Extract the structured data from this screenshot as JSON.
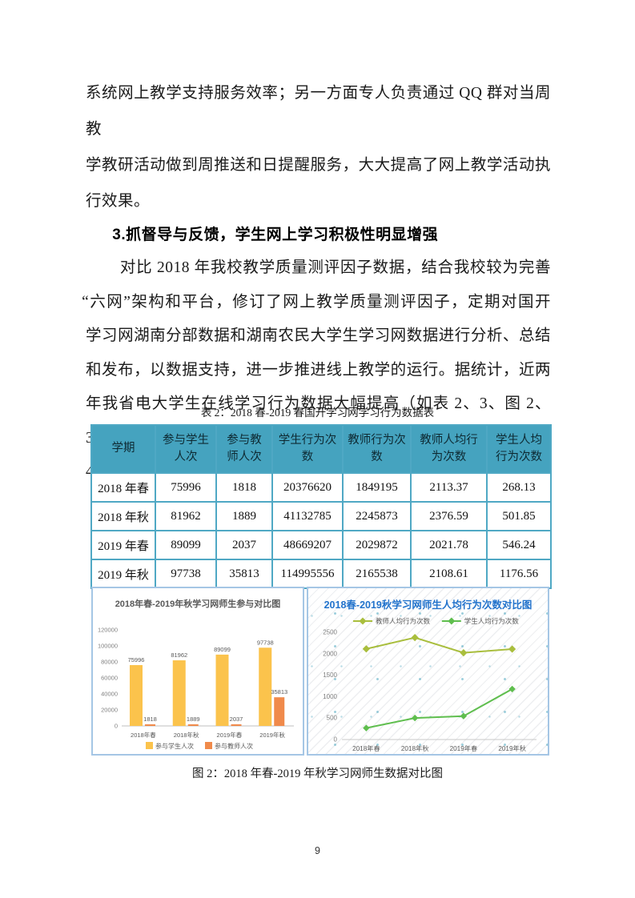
{
  "document": {
    "paragraph1_lines": [
      "系统网上教学支持服务效率；另一方面专人负责通过 QQ 群对当周教",
      "学教研活动做到周推送和日提醒服务，大大提高了网上教学活动执",
      "行效果。"
    ],
    "heading": "3.抓督导与反馈，学生网上学习积极性明显增强",
    "paragraph2_lines": [
      "对比 2018 年我校教学质量测评因子数据，结合我校较为完善",
      "“六网”架构和平台，修订了网上教学质量测评因子，定期对国开",
      "学习网湖南分部数据和湖南农民大学生学习网数据进行分析、总结",
      "和发布，以数据支持，进一步推进线上教学的运行。据统计，近两",
      "年我省电大学生在线学习行为数据大幅提高（如表 2、3、图 2、3、",
      "4）。"
    ],
    "table_caption": "表 2：2018 春-2019 春国开学习网学习行为数据表",
    "figure_caption": "图 2：2018 年春-2019 年秋学习网师生数据对比图",
    "page_number": "9"
  },
  "table": {
    "headers": [
      "学期",
      "参与学生\n人次",
      "参与教\n师人次",
      "学生行为次\n数",
      "教师行为次\n数",
      "教师人均行\n为次数",
      "学生人均\n行为次数"
    ],
    "rows": [
      [
        "2018 年春",
        "75996",
        "1818",
        "20376620",
        "1849195",
        "2113.37",
        "268.13"
      ],
      [
        "2018 年秋",
        "81962",
        "1889",
        "41132785",
        "2245873",
        "2376.59",
        "501.85"
      ],
      [
        "2019 年春",
        "89099",
        "2037",
        "48669207",
        "2029872",
        "2021.78",
        "546.24"
      ],
      [
        "2019 年秋",
        "97738",
        "35813",
        "114995556",
        "2165538",
        "2108.61",
        "1176.56"
      ]
    ]
  },
  "chart_data": [
    {
      "type": "bar",
      "title": "2018年春-2019年秋学习网师生参与对比图",
      "categories": [
        "2018年春",
        "2018年秋",
        "2019年春",
        "2019年秋"
      ],
      "series": [
        {
          "name": "参与学生人次",
          "color": "#FBC34C",
          "values": [
            75996,
            81962,
            89099,
            97738
          ]
        },
        {
          "name": "参与教师人次",
          "color": "#F08A4B",
          "values": [
            1818,
            1889,
            2037,
            35813
          ]
        }
      ],
      "xlabel": "",
      "ylabel": "",
      "ylim": [
        0,
        120000
      ],
      "ytick_step": 20000,
      "grid": false,
      "legend_position": "bottom",
      "data_labels": true
    },
    {
      "type": "line",
      "title": "2018春-2019秋学习网师生人均行为次数对比图",
      "categories": [
        "2018年春",
        "2018年秋",
        "2019年春",
        "2019年秋"
      ],
      "series": [
        {
          "name": "教师人均行为次数",
          "color": "#A9BE3D",
          "values": [
            2113.37,
            2376.59,
            2021.78,
            2108.61
          ]
        },
        {
          "name": "学生人均行为次数",
          "color": "#5FBE4E",
          "values": [
            268.13,
            501.85,
            546.24,
            1176.56
          ]
        }
      ],
      "xlabel": "",
      "ylabel": "",
      "ylim": [
        0,
        2500
      ],
      "ytick_step": 500,
      "grid": false,
      "legend_position": "top",
      "marker": "diamond"
    }
  ],
  "colors": {
    "table_header_bg": "#45A3BF",
    "table_border": "#4FA8C4",
    "chart_border": "#A5C6E5",
    "bar_chart_title": "#595959",
    "line_chart_title": "#2273CC",
    "axis_text": "#7F7F7F",
    "axis_line": "#BFBFBF"
  }
}
